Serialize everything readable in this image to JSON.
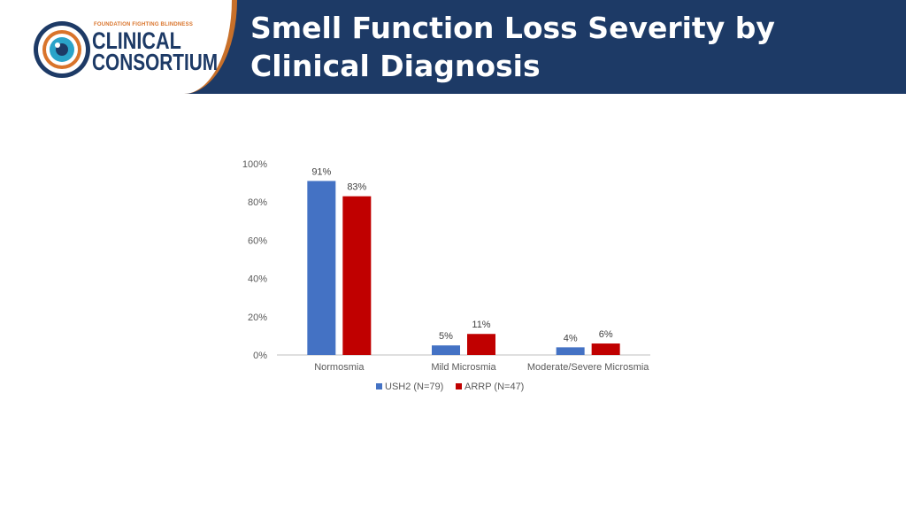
{
  "header": {
    "title_line1": "Smell Function Loss Severity by",
    "title_line2": "Clinical Diagnosis"
  },
  "logo": {
    "tagline": "FOUNDATION FIGHTING BLINDNESS",
    "line1": "CLINICAL",
    "line2": "CONSORTIUM"
  },
  "colors": {
    "header_bg": "#1d3a66",
    "accent_orange": "#c8702a",
    "series_usH2": "#4472c4",
    "series_arrp": "#c00000"
  },
  "chart_data": {
    "type": "bar",
    "title": "",
    "xlabel": "",
    "ylabel": "",
    "ylim": [
      0,
      100
    ],
    "yticks": [
      "0%",
      "20%",
      "40%",
      "60%",
      "80%",
      "100%"
    ],
    "grid": false,
    "legend_position": "bottom",
    "categories": [
      "Normosmia",
      "Mild Microsmia",
      "Moderate/Severe Microsmia"
    ],
    "series": [
      {
        "name": "USH2 (N=79)",
        "color": "#4472c4",
        "values": [
          91,
          5,
          4
        ],
        "labels": [
          "91%",
          "5%",
          "4%"
        ]
      },
      {
        "name": "ARRP (N=47)",
        "color": "#c00000",
        "values": [
          83,
          11,
          6
        ],
        "labels": [
          "83%",
          "11%",
          "6%"
        ]
      }
    ]
  }
}
